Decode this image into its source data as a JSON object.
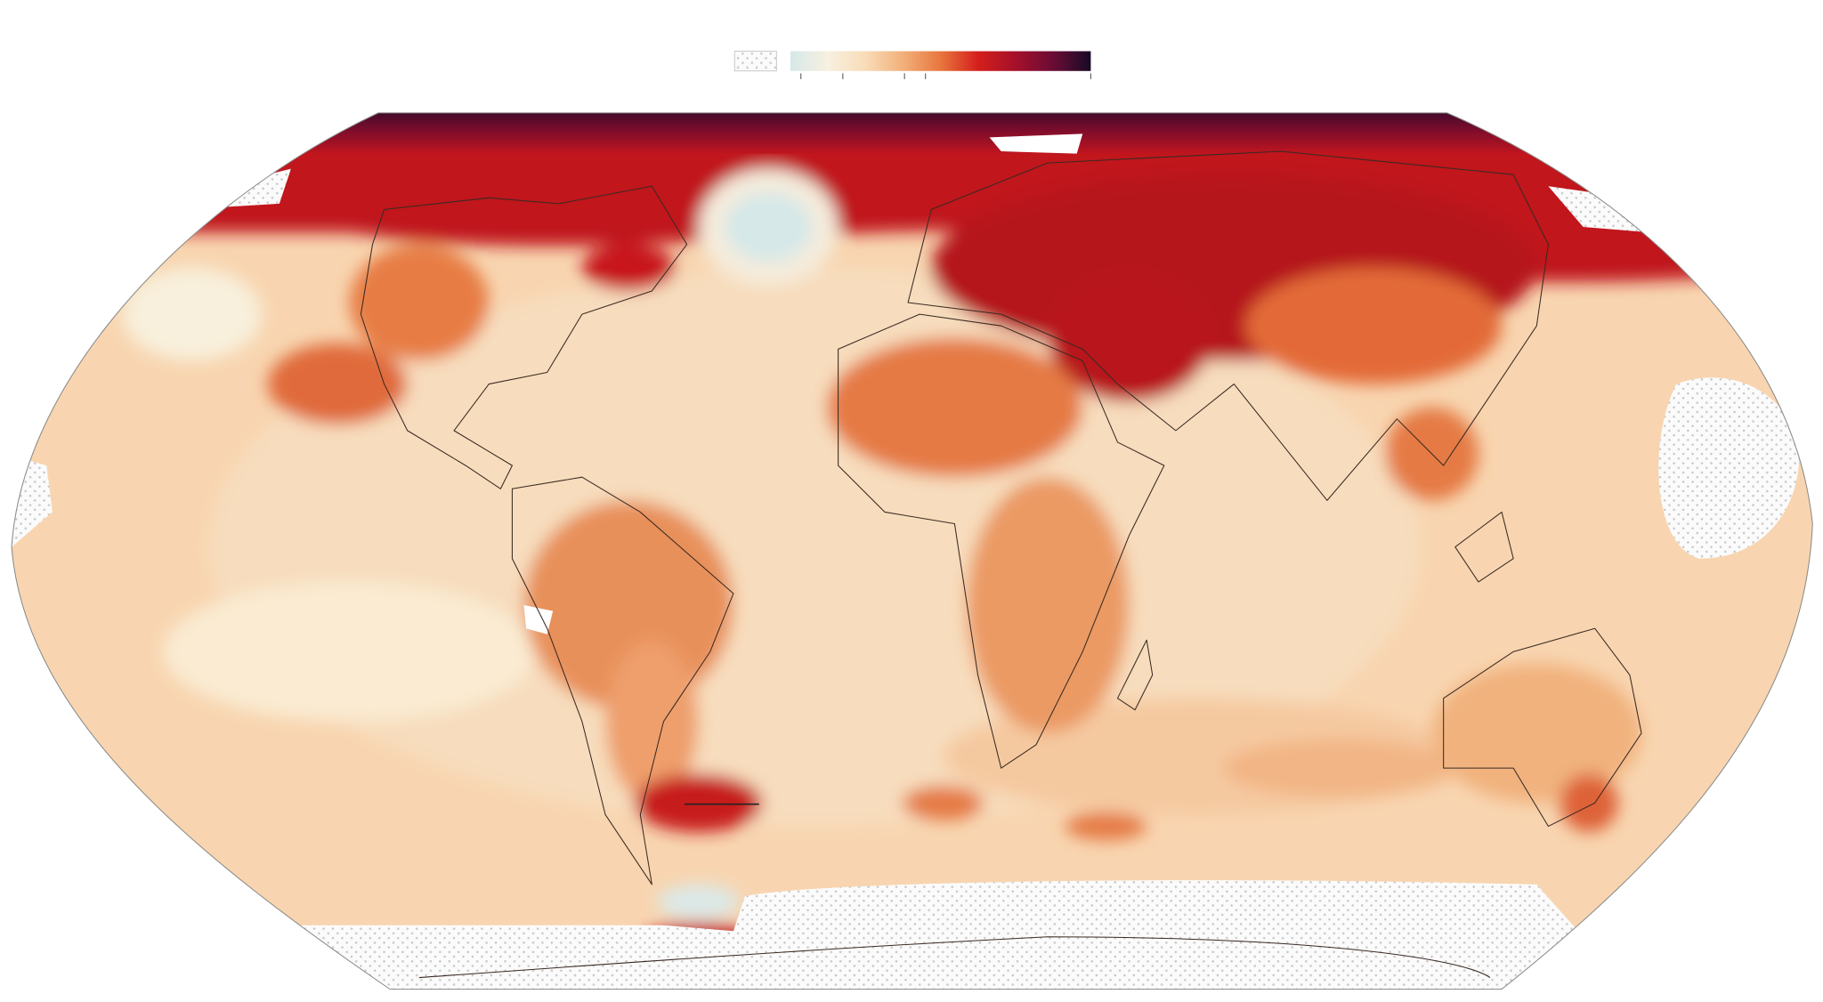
{
  "legend": {
    "no_data_pattern": true,
    "colors": [
      "#d6e8e8",
      "#f7f0e0",
      "#f9dcb8",
      "#f2b07a",
      "#e8763e",
      "#d41f1c",
      "#a5102a",
      "#6a0c35",
      "#160a25"
    ]
  }
}
